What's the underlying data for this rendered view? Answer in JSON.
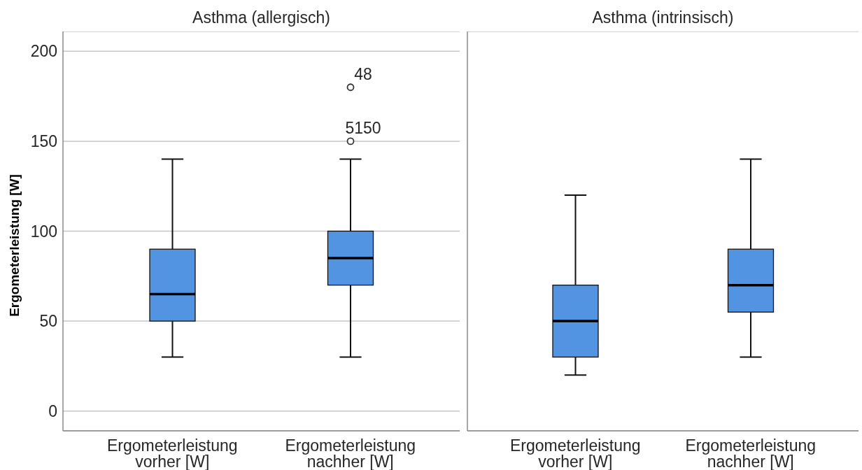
{
  "chart_data": [
    {
      "type": "box",
      "title": "Asthma (allergisch)",
      "ylabel": "Ergometerleistung [W]",
      "categories": [
        "Ergometerleistung vorher [W]",
        "Ergometerleistung nachher [W]"
      ],
      "boxes": [
        {
          "low": 30,
          "q1": 50,
          "median": 65,
          "q3": 90,
          "high": 140
        },
        {
          "low": 30,
          "q1": 70,
          "median": 85,
          "q3": 100,
          "high": 140,
          "outliers": [
            180,
            150
          ]
        }
      ],
      "color": "#5294e2",
      "ylim": [
        -11,
        211
      ],
      "yticks": [
        0,
        50,
        100,
        150,
        200
      ],
      "grid": "y",
      "annotations": [
        "48",
        "5150"
      ]
    },
    {
      "type": "box",
      "title": "Asthma (intrinsisch)",
      "categories": [
        "Ergometerleistung vorher [W]",
        "Ergometerleistung nachher [W]"
      ],
      "boxes": [
        {
          "low": 20,
          "q1": 30,
          "median": 50,
          "q3": 70,
          "high": 120
        },
        {
          "low": 30,
          "q1": 55,
          "median": 70,
          "q3": 90,
          "high": 140
        }
      ],
      "color": "#5294e2",
      "ylim": [
        -11,
        211
      ],
      "yticks": [
        0,
        50,
        100,
        150,
        200
      ],
      "grid": "y",
      "tick_labels": "x"
    }
  ]
}
